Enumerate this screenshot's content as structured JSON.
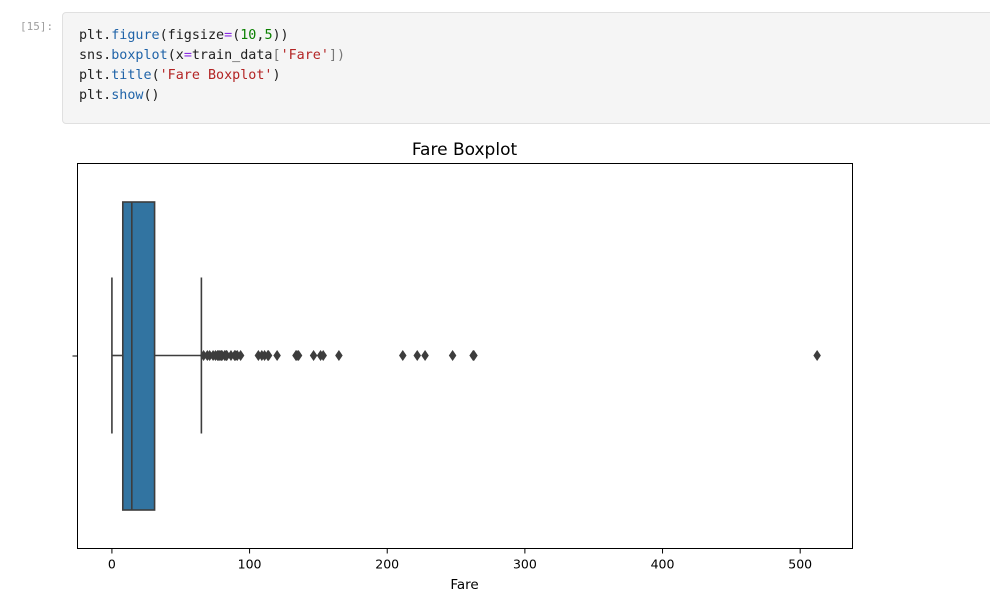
{
  "cell": {
    "prompt": "[15]:",
    "code": [
      [
        {
          "t": "plt."
        },
        {
          "t": "figure",
          "c": "fn"
        },
        {
          "t": "(figsize"
        },
        {
          "t": "=",
          "c": "op"
        },
        {
          "t": "("
        },
        {
          "t": "10",
          "c": "num"
        },
        {
          "t": ","
        },
        {
          "t": "5",
          "c": "num"
        },
        {
          "t": "))"
        }
      ],
      [
        {
          "t": "sns."
        },
        {
          "t": "boxplot",
          "c": "fn"
        },
        {
          "t": "(x"
        },
        {
          "t": "=",
          "c": "op"
        },
        {
          "t": "train_data"
        },
        {
          "t": "[",
          "c": "br"
        },
        {
          "t": "'Fare'",
          "c": "str"
        },
        {
          "t": "])",
          "c": "br"
        }
      ],
      [
        {
          "t": "plt."
        },
        {
          "t": "title",
          "c": "fn"
        },
        {
          "t": "("
        },
        {
          "t": "'Fare Boxplot'",
          "c": "str"
        },
        {
          "t": ")"
        }
      ],
      [
        {
          "t": "plt."
        },
        {
          "t": "show",
          "c": "fn"
        },
        {
          "t": "()"
        }
      ]
    ]
  },
  "chart_data": {
    "type": "boxplot",
    "title": "Fare Boxplot",
    "xlabel": "Fare",
    "ylabel": "",
    "xlim": [
      -25,
      538
    ],
    "xticks": [
      0,
      100,
      200,
      300,
      400,
      500
    ],
    "box": {
      "whisker_low": 0,
      "q1": 7.9,
      "median": 14.45,
      "q3": 31,
      "whisker_high": 65,
      "color": "#3274a1"
    },
    "outliers": [
      66.6,
      69.3,
      71,
      73.5,
      75.2,
      76.7,
      77.3,
      78.3,
      79.2,
      79.6,
      80,
      81.9,
      82.2,
      83.2,
      83.5,
      86.5,
      89.1,
      90,
      91.1,
      93.5,
      106.4,
      108.9,
      110.9,
      113.3,
      113.8,
      120,
      133.7,
      134.5,
      135.6,
      146.5,
      151.6,
      153.5,
      164.9,
      211.3,
      221.8,
      227.5,
      247.5,
      262.4,
      263,
      512.3
    ],
    "grid": false
  }
}
